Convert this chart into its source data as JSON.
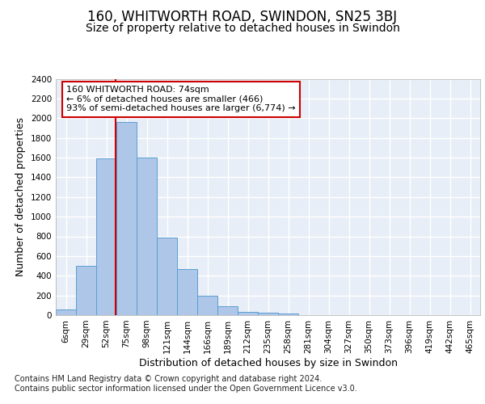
{
  "title": "160, WHITWORTH ROAD, SWINDON, SN25 3BJ",
  "subtitle": "Size of property relative to detached houses in Swindon",
  "xlabel": "Distribution of detached houses by size in Swindon",
  "ylabel": "Number of detached properties",
  "bar_labels": [
    "6sqm",
    "29sqm",
    "52sqm",
    "75sqm",
    "98sqm",
    "121sqm",
    "144sqm",
    "166sqm",
    "189sqm",
    "212sqm",
    "235sqm",
    "258sqm",
    "281sqm",
    "304sqm",
    "327sqm",
    "350sqm",
    "373sqm",
    "396sqm",
    "419sqm",
    "442sqm",
    "465sqm"
  ],
  "bar_values": [
    60,
    500,
    1590,
    1960,
    1600,
    790,
    470,
    195,
    90,
    35,
    25,
    20,
    0,
    0,
    0,
    0,
    0,
    0,
    0,
    0,
    0
  ],
  "bar_color": "#aec6e8",
  "bar_edge_color": "#5a9fd4",
  "background_color": "#e8eef7",
  "grid_color": "#ffffff",
  "ylim": [
    0,
    2400
  ],
  "yticks": [
    0,
    200,
    400,
    600,
    800,
    1000,
    1200,
    1400,
    1600,
    1800,
    2000,
    2200,
    2400
  ],
  "property_line_color": "#cc0000",
  "annotation_text": "160 WHITWORTH ROAD: 74sqm\n← 6% of detached houses are smaller (466)\n93% of semi-detached houses are larger (6,774) →",
  "annotation_box_color": "#ffffff",
  "annotation_box_edge_color": "#cc0000",
  "footer_line1": "Contains HM Land Registry data © Crown copyright and database right 2024.",
  "footer_line2": "Contains public sector information licensed under the Open Government Licence v3.0.",
  "title_fontsize": 12,
  "subtitle_fontsize": 10,
  "xlabel_fontsize": 9,
  "ylabel_fontsize": 9,
  "tick_fontsize": 7.5,
  "annotation_fontsize": 8,
  "footer_fontsize": 7,
  "property_bar_index": 2.956
}
